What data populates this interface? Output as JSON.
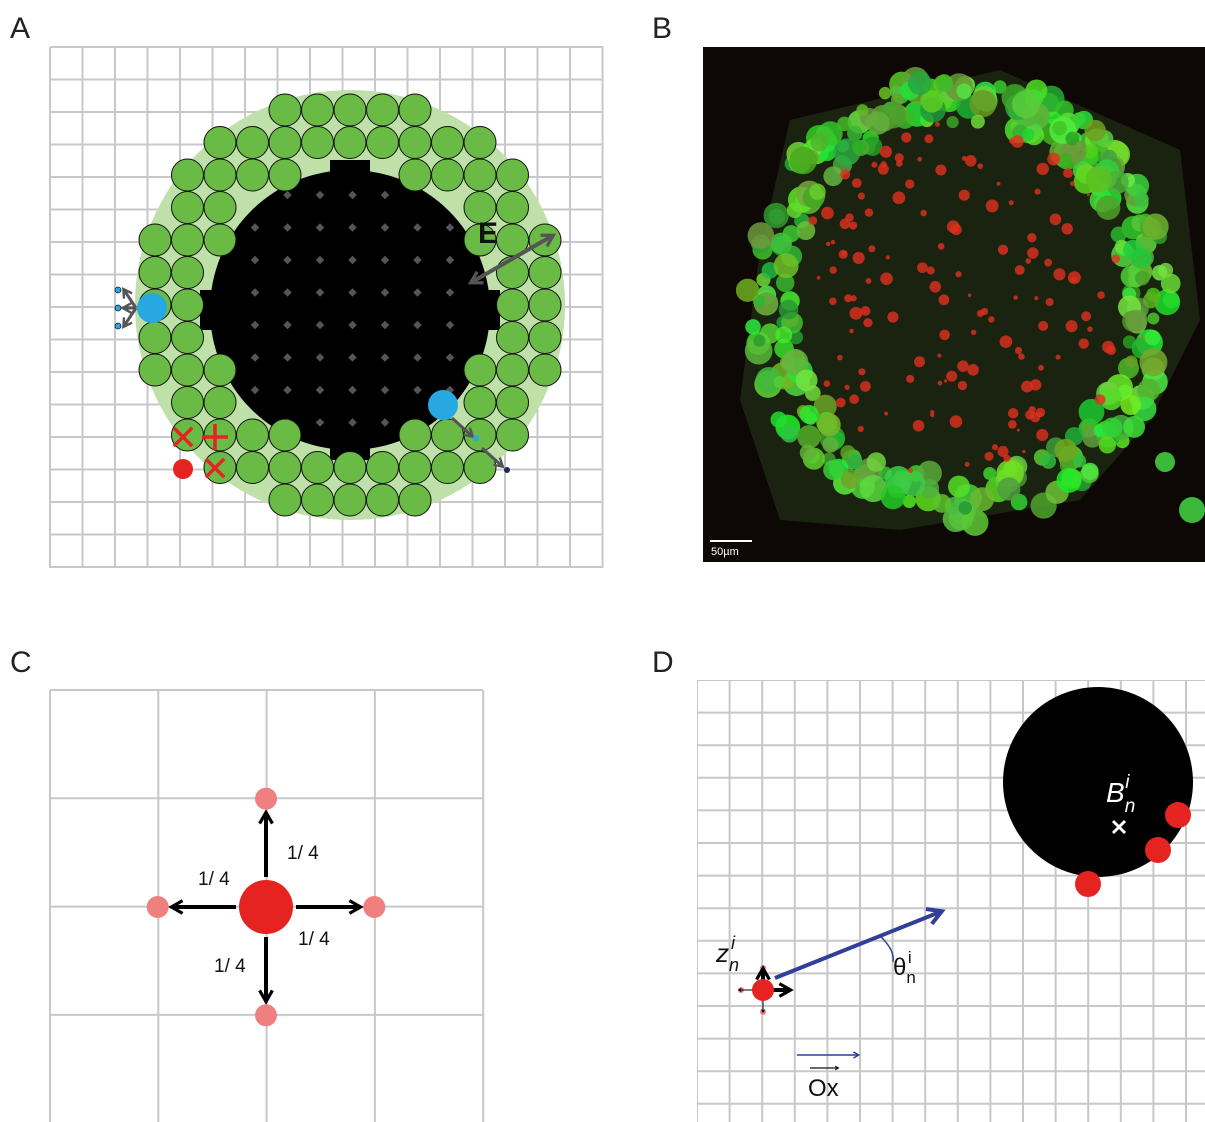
{
  "panels": {
    "a": {
      "label": "A",
      "annotation": "E"
    },
    "b": {
      "label": "B",
      "scale_bar": "50µm"
    },
    "c": {
      "label": "C",
      "probabilities": [
        "1/ 4",
        "1/ 4",
        "1/ 4",
        "1/ 4"
      ]
    },
    "d": {
      "label": "D",
      "target": {
        "symbol": "B",
        "sub": "n",
        "sup": "i"
      },
      "cell": {
        "symbol": "z",
        "sub": "n",
        "sup": "i"
      },
      "angle": {
        "symbol": "θ",
        "sub": "n",
        "sup": "i"
      },
      "axis": "Ox"
    }
  }
}
